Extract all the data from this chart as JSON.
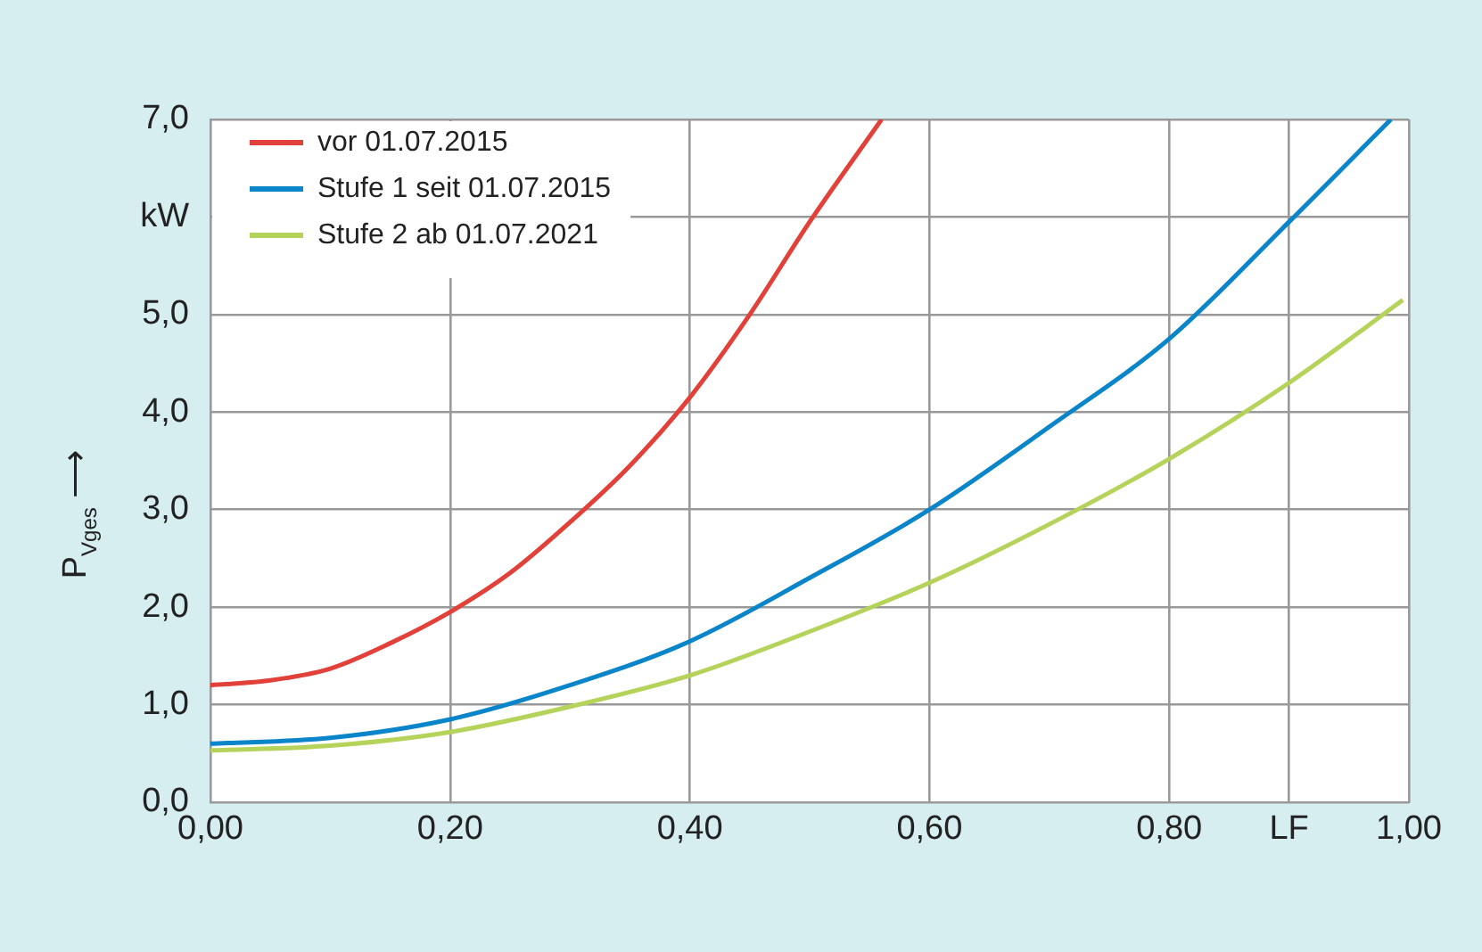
{
  "chart_data": {
    "type": "line",
    "ylabel": "P$_{Vges}$ ⟶",
    "legend": "top left",
    "grid": true,
    "marker": "none",
    "line_style": "solid",
    "xlim": [
      0,
      1
    ],
    "xticks": [
      {
        "value": 0,
        "label": "0,00"
      },
      {
        "value": 0.2,
        "label": "0,20"
      },
      {
        "value": 0.4,
        "label": "0,40"
      },
      {
        "value": 0.6,
        "label": "0,60"
      },
      {
        "value": 0.8,
        "label": "0,80"
      },
      {
        "value": 0.9,
        "label": "LF"
      },
      {
        "value": 1,
        "label": "1,00"
      }
    ],
    "ylim": [
      0,
      7
    ],
    "yticks": [
      {
        "value": 0,
        "label": "0,0"
      },
      {
        "value": 1,
        "label": "1,0"
      },
      {
        "value": 2,
        "label": "2,0"
      },
      {
        "value": 3,
        "label": "3,0"
      },
      {
        "value": 4,
        "label": "4,0"
      },
      {
        "value": 5,
        "label": "5,0"
      },
      {
        "value": 6,
        "label": "kW"
      },
      {
        "value": 7,
        "label": "7,0"
      }
    ],
    "series": [
      {
        "name": "vor 01.07.2015",
        "color": "#e2413a",
        "x": [
          0,
          0.05,
          0.1,
          0.15,
          0.2,
          0.25,
          0.3,
          0.35,
          0.4,
          0.45,
          0.5,
          0.56
        ],
        "values": [
          1.2,
          1.25,
          1.37,
          1.63,
          1.95,
          2.35,
          2.87,
          3.45,
          4.15,
          5.0,
          5.95,
          7.0
        ]
      },
      {
        "name": "Stufe 1 seit 01.07.2015",
        "color": "#0a85c9",
        "x": [
          0,
          0.1,
          0.2,
          0.3,
          0.4,
          0.5,
          0.6,
          0.7,
          0.8,
          0.9,
          0.985
        ],
        "values": [
          0.6,
          0.66,
          0.85,
          1.2,
          1.65,
          2.3,
          3.0,
          3.85,
          4.75,
          5.95,
          7.0
        ]
      },
      {
        "name": "Stufe 2 ab 01.07.2021",
        "color": "#b5d35a",
        "x": [
          0,
          0.1,
          0.2,
          0.3,
          0.4,
          0.5,
          0.6,
          0.7,
          0.8,
          0.9,
          0.995
        ],
        "values": [
          0.53,
          0.58,
          0.72,
          0.98,
          1.3,
          1.75,
          2.25,
          2.85,
          3.52,
          4.3,
          5.15
        ]
      }
    ]
  }
}
